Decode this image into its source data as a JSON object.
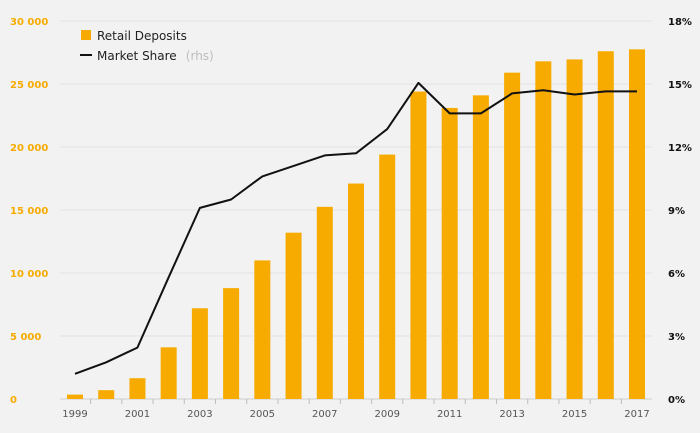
{
  "chart_data": {
    "type": "bar",
    "x": [
      1999,
      2000,
      2001,
      2002,
      2003,
      2004,
      2005,
      2006,
      2007,
      2008,
      2009,
      2010,
      2011,
      2012,
      2013,
      2014,
      2015,
      2016,
      2017
    ],
    "x_tick_labels": [
      "1999",
      "2001",
      "2003",
      "2005",
      "2007",
      "2009",
      "2011",
      "2013",
      "2015",
      "2017"
    ],
    "series": [
      {
        "name": "Retail Deposits",
        "type": "bar",
        "axis": "left",
        "color": "#f7ab00",
        "values": [
          350,
          700,
          1650,
          4100,
          7200,
          8800,
          11000,
          13200,
          15250,
          17100,
          19400,
          24400,
          23100,
          24100,
          25900,
          26800,
          26950,
          27600,
          27750
        ]
      },
      {
        "name": "Market Share",
        "name_suffix": "(rhs)",
        "type": "line",
        "axis": "right",
        "color": "#111111",
        "values": [
          1.2,
          1.75,
          2.45,
          5.8,
          9.1,
          9.5,
          10.6,
          11.1,
          11.6,
          11.7,
          12.85,
          15.05,
          13.6,
          13.6,
          14.55,
          14.7,
          14.5,
          14.65,
          14.65
        ]
      }
    ],
    "y_left": {
      "ylim": [
        0,
        30000
      ],
      "ticks": [
        0,
        5000,
        10000,
        15000,
        20000,
        25000,
        30000
      ],
      "tick_labels": [
        "0",
        "5 000",
        "10 000",
        "15 000",
        "20 000",
        "25 000",
        "30 000"
      ],
      "label_color": "#f7ab00"
    },
    "y_right": {
      "ylim": [
        0,
        18
      ],
      "ticks": [
        0,
        3,
        6,
        9,
        12,
        15,
        18
      ],
      "tick_labels": [
        "0%",
        "3%",
        "6%",
        "9%",
        "12%",
        "15%",
        "18%"
      ]
    },
    "grid": true,
    "legend": "top-left"
  }
}
